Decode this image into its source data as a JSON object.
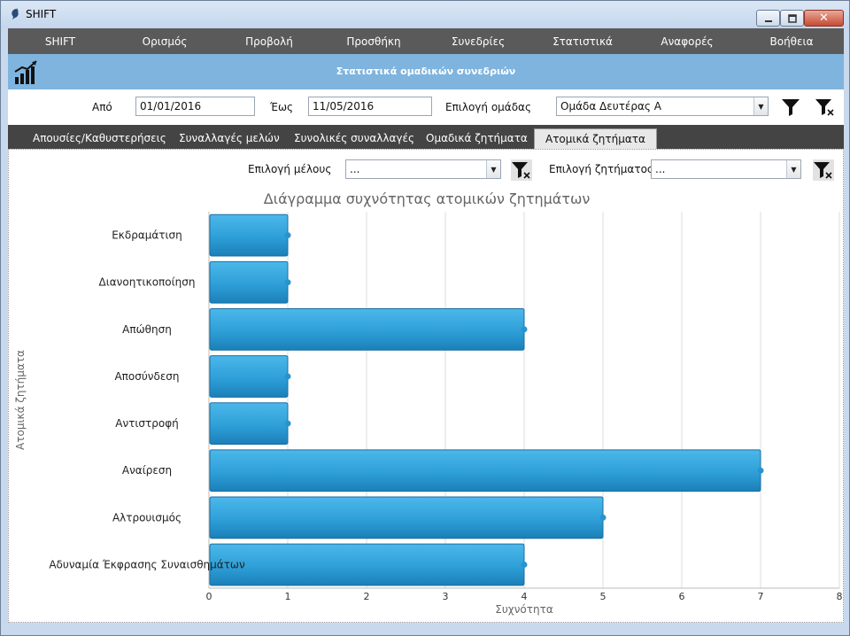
{
  "window": {
    "title": "SHIFT"
  },
  "menu": [
    "SHIFT",
    "Ορισμός",
    "Προβολή",
    "Προσθήκη",
    "Συνεδρίες",
    "Στατιστικά",
    "Αναφορές",
    "Βοήθεια"
  ],
  "header": {
    "title": "Στατιστικά ομαδικών συνεδριών"
  },
  "filters": {
    "from_label": "Από",
    "from_value": "01/01/2016",
    "to_label": "Έως",
    "to_value": "11/05/2016",
    "group_label": "Επιλογή ομάδας",
    "group_value": "Ομάδα Δευτέρας Α"
  },
  "tabs": [
    {
      "label": "Απουσίες/Καθυστερήσεις",
      "active": false
    },
    {
      "label": "Συναλλαγές μελών",
      "active": false
    },
    {
      "label": "Συνολικές συναλλαγές",
      "active": false
    },
    {
      "label": "Ομαδικά ζητήματα",
      "active": false
    },
    {
      "label": "Ατομικά ζητήματα",
      "active": true
    }
  ],
  "subfilters": {
    "member_label": "Επιλογή μέλους",
    "member_value": "...",
    "issue_label": "Επιλογή ζητήματος",
    "issue_value": "..."
  },
  "chart_data": {
    "type": "bar",
    "orientation": "horizontal",
    "title": "Διάγραμμα συχνότητας ατομικών ζητημάτων",
    "xlabel": "Συχνότητα",
    "ylabel": "Ατομικά ζητήματα",
    "categories": [
      "Εκδραμάτιση",
      "Διανοητικοποίηση",
      "Απώθηση",
      "Αποσύνδεση",
      "Αντιστροφή",
      "Αναίρεση",
      "Αλτρουισμός",
      "Αδυναμία Έκφρασης Συναισθημάτων"
    ],
    "values": [
      1,
      1,
      4,
      1,
      1,
      7,
      5,
      4
    ],
    "xlim": [
      0,
      8
    ],
    "xticks": [
      "0",
      "1",
      "2",
      "3",
      "4",
      "5",
      "6",
      "7",
      "8"
    ],
    "grid": true,
    "bar_color": "#2e9fd8"
  }
}
